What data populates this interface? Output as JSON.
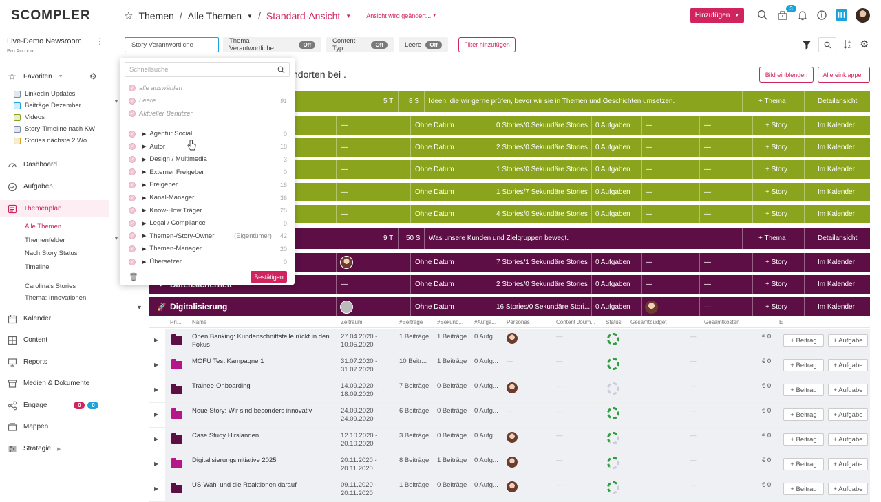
{
  "brand": {
    "name": "SCOMPLER"
  },
  "breadcrumb": {
    "root": "Themen",
    "level1": "Alle Themen",
    "level2": "Standard-Ansicht",
    "view_changed": "Ansicht wird geändert..."
  },
  "header": {
    "add_label": "Hinzufügen",
    "notification_count": "3"
  },
  "org": {
    "name": "Live-Demo Newsroom",
    "plan": "Pro Account"
  },
  "sidebar": {
    "favorites_label": "Favoriten",
    "favorites": [
      {
        "label": "Linkedin Updates",
        "color": "#7a8aa8"
      },
      {
        "label": "Beiträge Dezember",
        "color": "#1aa3dc"
      },
      {
        "label": "Videos",
        "color": "#8aa51d"
      },
      {
        "label": "Story-Timeline nach KW",
        "color": "#7a8aa8"
      },
      {
        "label": "Stories nächste 2 Wo",
        "color": "#d4a017"
      }
    ],
    "dashboard": "Dashboard",
    "tasks": "Aufgaben",
    "themenplan": "Themenplan",
    "themenplan_sub": [
      "Alle Themen",
      "Themenfelder",
      "Nach Story Status",
      "Timeline",
      "Carolina's Stories",
      "Thema: Innovationen"
    ],
    "calendar": "Kalender",
    "content": "Content",
    "reports": "Reports",
    "media": "Medien & Dokumente",
    "engage": "Engage",
    "engage_counts": [
      "0",
      "0"
    ],
    "folders": "Mappen",
    "strategy": "Strategie"
  },
  "filters": {
    "active_input": "Story Verantwortliche",
    "chips": [
      {
        "label": "Thema Verantwortliche",
        "state": "Off"
      },
      {
        "label": "Content-Typ",
        "state": "Off"
      },
      {
        "label": "Leere",
        "state": "Off"
      }
    ],
    "add_filter": "Filter hinzufügen"
  },
  "dropdown": {
    "search_placeholder": "Schnellsuche",
    "special": [
      {
        "label": "alle auswählen",
        "count": ""
      },
      {
        "label": "Leere",
        "count": "91"
      },
      {
        "label": "Aktueller Benutzer",
        "count": ""
      }
    ],
    "groups": [
      {
        "label": "Agentur Social",
        "count": "0"
      },
      {
        "label": "Autor",
        "count": "18"
      },
      {
        "label": "Design / Multimedia",
        "count": "3"
      },
      {
        "label": "Externer Freigeber",
        "count": "0"
      },
      {
        "label": "Freigeber",
        "count": "16"
      },
      {
        "label": "Kanal-Manager",
        "count": "36"
      },
      {
        "label": "Know-How Träger",
        "count": "25"
      },
      {
        "label": "Legal / Compliance",
        "count": "0"
      },
      {
        "label": "Themen-/Story-Owner",
        "count": "42",
        "note": "(Eigentümer)"
      },
      {
        "label": "Themen-Manager",
        "count": "20"
      },
      {
        "label": "Übersetzer",
        "count": "0"
      }
    ],
    "confirm": "Bestätigen"
  },
  "main": {
    "heading": "ndorten bei .",
    "show_images": "Bild einblenden",
    "collapse_all": "Alle einklappen",
    "green_field": {
      "topics": "5 T",
      "stories": "8 S",
      "description": "Ideen, die wir gerne prüfen, bevor wir sie in Themen und Geschichten umsetzen.",
      "add": "+ Thema",
      "details": "Detailansicht"
    },
    "green_rows": [
      {
        "date": "Ohne Datum",
        "stories": "0 Stories/0 Sekundäre Stories",
        "tasks": "0 Aufgaben"
      },
      {
        "date": "Ohne Datum",
        "stories": "2 Stories/0 Sekundäre Stories",
        "tasks": "0 Aufgaben"
      },
      {
        "date": "Ohne Datum",
        "stories": "1 Stories/0 Sekundäre Stories",
        "tasks": "0 Aufgaben"
      },
      {
        "date": "Ohne Datum",
        "stories": "1 Stories/7 Sekundäre Stories",
        "tasks": "0 Aufgaben"
      },
      {
        "date": "Ohne Datum",
        "stories": "4 Stories/0 Sekundäre Stories",
        "tasks": "0 Aufgaben"
      }
    ],
    "purple_field": {
      "topics": "9 T",
      "stories": "50 S",
      "description": "Was unsere Kunden und Zielgruppen bewegt.",
      "add": "+ Thema",
      "details": "Detailansicht"
    },
    "purple_rows": [
      {
        "name": "",
        "date": "Ohne Datum",
        "stories": "7 Stories/1 Sekundäre Stories",
        "tasks": "0 Aufgaben"
      },
      {
        "name": "Datensicherheit",
        "date": "Ohne Datum",
        "stories": "2 Stories/0 Sekundäre Stories",
        "tasks": "0 Aufgaben"
      }
    ],
    "digital": {
      "name": "Digitalisierung",
      "date": "Ohne Datum",
      "stories": "16 Stories/0 Sekundäre Stori...",
      "tasks": "0 Aufgaben"
    },
    "story_label": "+ Story",
    "calendar_label": "Im Kalender",
    "dash": "—",
    "columns": [
      "Pri...",
      "Name",
      "Zeitraum",
      "#Beiträge",
      "#Sekund...",
      "#Aufga...",
      "Personas",
      "Content Journ...",
      "Status",
      "Gesamtbudget",
      "Gesamtkosten",
      "E"
    ],
    "stories": [
      {
        "name": "Open Banking: Kundenschnittstelle rückt in den Fokus",
        "period": "27.04.2020 - 10.05.2020",
        "posts": "1 Beiträge",
        "sec": "1 Beiträge",
        "tasks": "0 Aufg...",
        "costs": "€ 0",
        "color": "#5c0e45",
        "status": "full"
      },
      {
        "name": "MOFU Test Kampagne 1",
        "period": "31.07.2020 - 31.07.2020",
        "posts": "10 Beitr...",
        "sec": "1 Beiträge",
        "tasks": "0 Aufg...",
        "costs": "€ 0",
        "color": "#b5178b",
        "status": "full"
      },
      {
        "name": "Trainee-Onboarding",
        "period": "14.09.2020 - 18.09.2020",
        "posts": "7 Beiträge",
        "sec": "0 Beiträge",
        "tasks": "0 Aufg...",
        "costs": "€ 0",
        "color": "#5c0e45",
        "status": "light"
      },
      {
        "name": "Neue Story: Wir sind besonders innovativ",
        "period": "24.09.2020 - 24.09.2020",
        "posts": "6 Beiträge",
        "sec": "0 Beiträge",
        "tasks": "0 Aufg...",
        "costs": "€ 0",
        "color": "#b5178b",
        "status": "full"
      },
      {
        "name": "Case Study Hirslanden",
        "period": "12.10.2020 - 20.10.2020",
        "posts": "3 Beiträge",
        "sec": "0 Beiträge",
        "tasks": "0 Aufg...",
        "costs": "€ 0",
        "color": "#5c0e45",
        "status": "half"
      },
      {
        "name": "Digitalisierungsinitiative 2025",
        "period": "20.11.2020 - 20.11.2020",
        "posts": "8 Beiträge",
        "sec": "1 Beiträge",
        "tasks": "0 Aufg...",
        "costs": "€ 0",
        "color": "#b5178b",
        "status": "half"
      },
      {
        "name": "US-Wahl und die Reaktionen darauf",
        "period": "09.11.2020 - 20.11.2020",
        "posts": "1 Beiträge",
        "sec": "0 Beiträge",
        "tasks": "0 Aufg...",
        "costs": "€ 0",
        "color": "#5c0e45",
        "status": "half"
      }
    ],
    "add_post": "+ Beitrag",
    "add_task": "+ Aufgabe"
  }
}
